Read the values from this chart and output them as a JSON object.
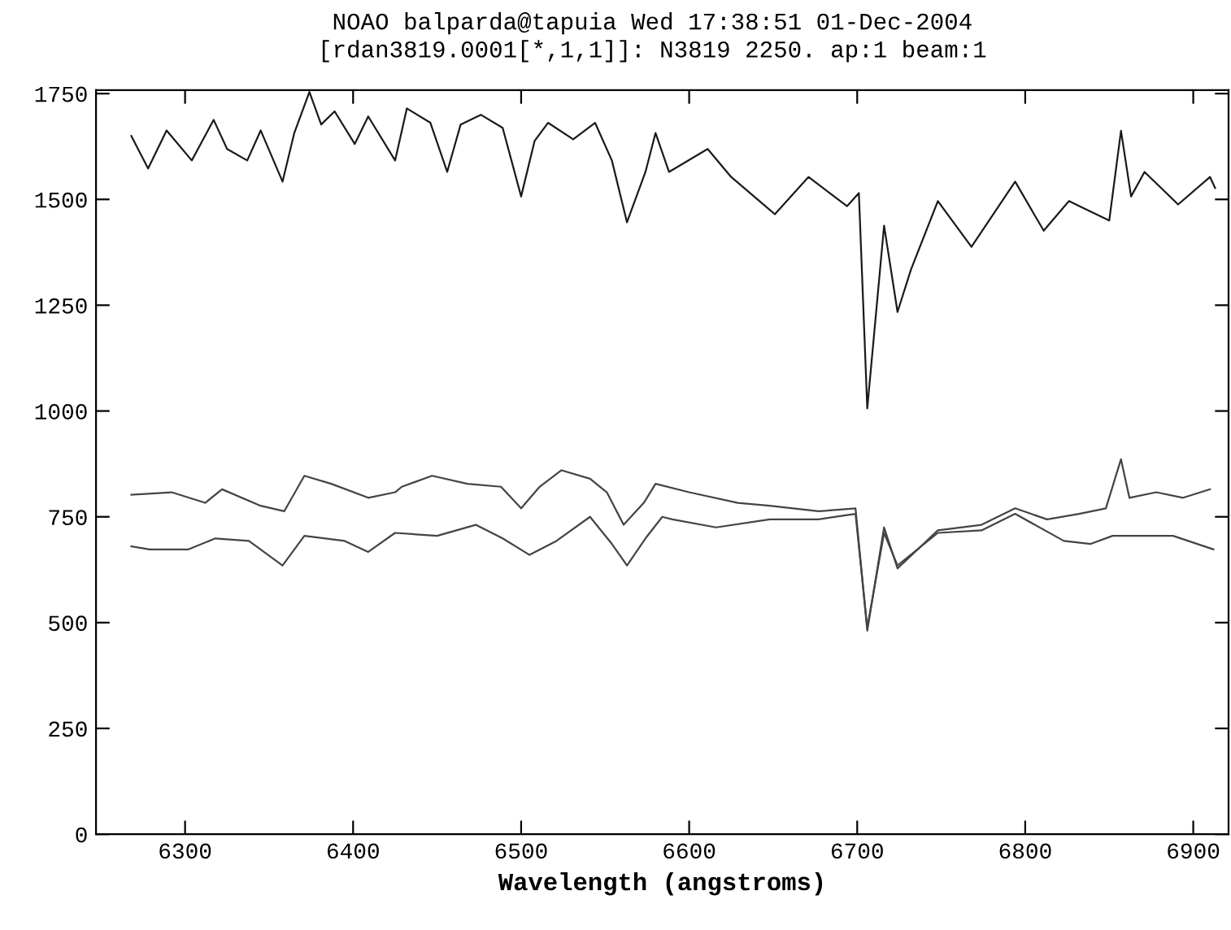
{
  "chart_data": {
    "type": "line",
    "title": "NOAO balparda@tapuia Wed 17:38:51 01-Dec-2004",
    "subtitle": "[rdan3819.0001[*,1,1]]: N3819 2250. ap:1 beam:1",
    "xlabel": "Wavelength (angstroms)",
    "xlim": [
      6247,
      6921
    ],
    "xticks": [
      6300,
      6400,
      6500,
      6600,
      6700,
      6800,
      6900
    ],
    "ylim": [
      0,
      1758
    ],
    "yticks": [
      0,
      250,
      500,
      750,
      1000,
      1250,
      1500,
      1750
    ],
    "grid": false,
    "legend": false,
    "marker": "none",
    "line_style": "solid",
    "series": [
      {
        "color": "#1a1a1a",
        "x": [
          6268,
          6278,
          6289,
          6304,
          6317,
          6325,
          6337,
          6345,
          6358,
          6365,
          6374,
          6381,
          6389,
          6401,
          6409,
          6425,
          6432,
          6446,
          6456,
          6464,
          6476,
          6489,
          6500,
          6508,
          6516,
          6531,
          6544,
          6554,
          6563,
          6574,
          6580,
          6588,
          6611,
          6625,
          6651,
          6671,
          6694,
          6701,
          6706,
          6716,
          6724,
          6732,
          6748,
          6768,
          6794,
          6811,
          6826,
          6850,
          6857,
          6863,
          6871,
          6891,
          6910,
          6913
        ],
        "values": [
          1650,
          1573,
          1663,
          1592,
          1688,
          1619,
          1592,
          1663,
          1542,
          1657,
          1754,
          1677,
          1708,
          1631,
          1696,
          1592,
          1715,
          1681,
          1565,
          1677,
          1700,
          1669,
          1507,
          1638,
          1681,
          1642,
          1681,
          1592,
          1446,
          1565,
          1657,
          1565,
          1619,
          1553,
          1465,
          1553,
          1484,
          1515,
          1006,
          1438,
          1234,
          1334,
          1496,
          1388,
          1542,
          1426,
          1496,
          1450,
          1662,
          1507,
          1565,
          1488,
          1553,
          1527
        ]
      },
      {
        "color": "#444444",
        "x": [
          6268,
          6292,
          6312,
          6322,
          6345,
          6359,
          6371,
          6387,
          6409,
          6425,
          6429,
          6447,
          6468,
          6488,
          6500,
          6511,
          6524,
          6541,
          6551,
          6561,
          6573,
          6580,
          6600,
          6629,
          6648,
          6677,
          6699,
          6706,
          6716,
          6724,
          6748,
          6774,
          6794,
          6813,
          6832,
          6848,
          6857,
          6862,
          6878,
          6894,
          6910
        ],
        "values": [
          802,
          808,
          783,
          815,
          776,
          763,
          847,
          828,
          795,
          808,
          821,
          847,
          828,
          821,
          770,
          821,
          860,
          840,
          808,
          731,
          783,
          828,
          808,
          783,
          776,
          763,
          770,
          481,
          725,
          628,
          718,
          731,
          770,
          744,
          757,
          770,
          886,
          795,
          808,
          795,
          815
        ]
      },
      {
        "color": "#444444",
        "x": [
          6268,
          6279,
          6302,
          6318,
          6338,
          6358,
          6371,
          6395,
          6409,
          6425,
          6450,
          6473,
          6489,
          6505,
          6521,
          6541,
          6554,
          6563,
          6574,
          6584,
          6590,
          6616,
          6648,
          6677,
          6699,
          6706,
          6716,
          6724,
          6748,
          6774,
          6794,
          6823,
          6839,
          6852,
          6862,
          6888,
          6912
        ],
        "values": [
          680,
          673,
          673,
          699,
          693,
          635,
          705,
          693,
          667,
          712,
          705,
          731,
          699,
          660,
          693,
          750,
          686,
          635,
          699,
          750,
          744,
          725,
          744,
          744,
          757,
          488,
          712,
          635,
          712,
          718,
          757,
          693,
          686,
          705,
          705,
          705,
          673
        ]
      }
    ]
  }
}
